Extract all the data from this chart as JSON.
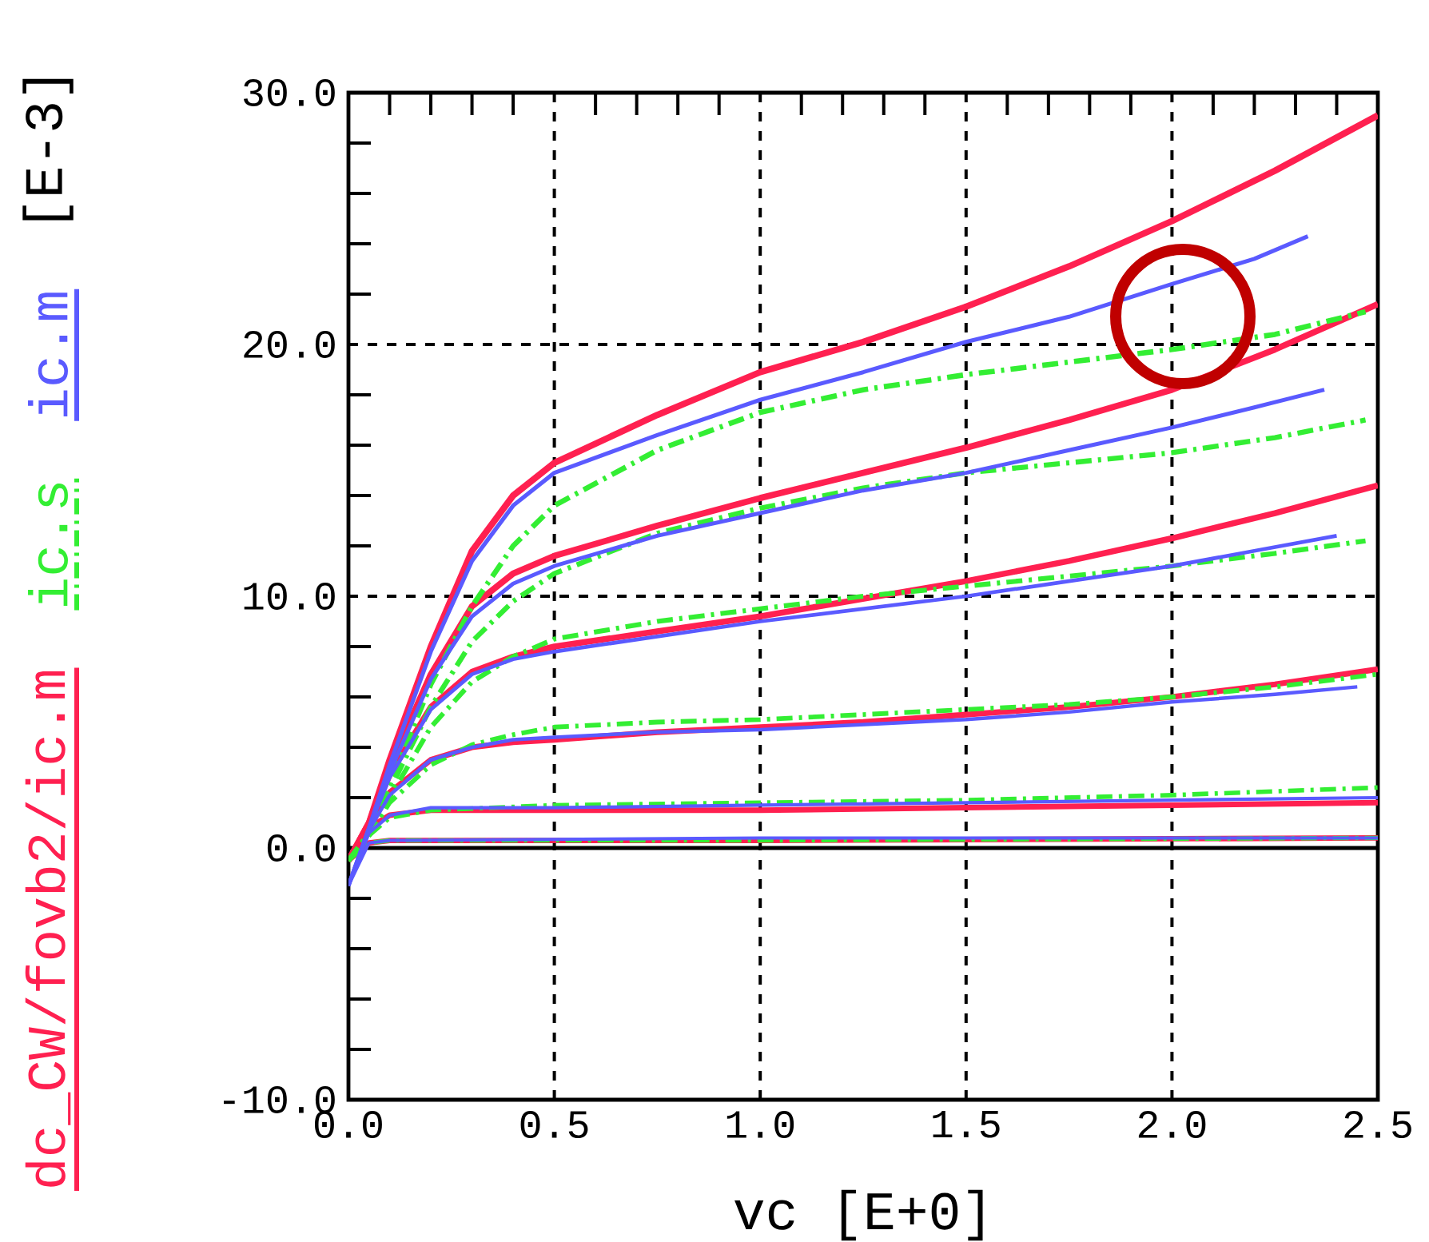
{
  "chart_data": {
    "type": "line",
    "xlabel": "vc [E+0]",
    "ylabel": "[E-3]",
    "xlim": [
      0,
      2.5
    ],
    "ylim": [
      -10,
      30
    ],
    "xticks": [
      {
        "value": 0,
        "label": "0.0"
      },
      {
        "value": 0.5,
        "label": "0.5"
      },
      {
        "value": 1,
        "label": "1.0"
      },
      {
        "value": 1.5,
        "label": "1.5"
      },
      {
        "value": 2,
        "label": "2.0"
      },
      {
        "value": 2.5,
        "label": "2.5"
      }
    ],
    "yticks": [
      {
        "value": -10,
        "label": "-10.0"
      },
      {
        "value": 0,
        "label": "0.0"
      },
      {
        "value": 10,
        "label": "10.0"
      },
      {
        "value": 20,
        "label": "20.0"
      },
      {
        "value": 30,
        "label": "30.0"
      }
    ],
    "grid": true,
    "legend": "left",
    "ref_lines": [
      {
        "axis": "y",
        "value": 0,
        "color": "#000000"
      }
    ],
    "series": [
      {
        "name": "dc_CW/fovb2/ic.m",
        "color": "#ff2050",
        "line_style": "solid",
        "x": [
          0,
          0.05,
          0.1,
          0.2,
          0.3,
          0.4,
          0.5,
          0.75,
          1.0,
          1.25,
          1.5,
          1.75,
          2.0,
          2.25,
          2.5
        ],
        "values": [
          -0.5,
          1.0,
          3.5,
          8.0,
          11.8,
          14.0,
          15.3,
          17.2,
          18.9,
          20.1,
          21.5,
          23.1,
          24.9,
          26.9,
          29.1
        ]
      },
      {
        "color": "#ff2050",
        "line_style": "solid",
        "x": [
          0,
          0.05,
          0.1,
          0.2,
          0.3,
          0.4,
          0.5,
          0.75,
          1.0,
          1.25,
          1.5,
          1.75,
          2.0,
          2.25,
          2.5
        ],
        "values": [
          -0.5,
          1.0,
          3.2,
          6.9,
          9.6,
          10.9,
          11.6,
          12.8,
          13.9,
          14.9,
          15.9,
          17.0,
          18.2,
          19.8,
          21.6
        ]
      },
      {
        "color": "#ff2050",
        "line_style": "solid",
        "x": [
          0,
          0.05,
          0.1,
          0.2,
          0.3,
          0.4,
          0.5,
          0.75,
          1.0,
          1.25,
          1.5,
          1.75,
          2.0,
          2.25,
          2.5
        ],
        "values": [
          -0.5,
          1.0,
          2.9,
          5.6,
          7.0,
          7.6,
          8.0,
          8.6,
          9.2,
          9.9,
          10.6,
          11.4,
          12.3,
          13.3,
          14.4
        ]
      },
      {
        "color": "#ff2050",
        "line_style": "solid",
        "x": [
          0,
          0.05,
          0.1,
          0.2,
          0.3,
          0.4,
          0.5,
          0.75,
          1.0,
          1.25,
          1.5,
          1.75,
          2.0,
          2.25,
          2.5
        ],
        "values": [
          -0.5,
          0.9,
          2.2,
          3.5,
          4.0,
          4.2,
          4.3,
          4.6,
          4.8,
          5.0,
          5.3,
          5.6,
          6.0,
          6.5,
          7.1
        ]
      },
      {
        "color": "#ff2050",
        "line_style": "solid",
        "x": [
          0,
          0.05,
          0.1,
          0.2,
          0.5,
          1.0,
          1.5,
          2.0,
          2.5
        ],
        "values": [
          -0.5,
          0.8,
          1.3,
          1.5,
          1.5,
          1.5,
          1.6,
          1.7,
          1.8
        ]
      },
      {
        "color": "#ff2050",
        "line_style": "solid",
        "x": [
          0,
          0.05,
          0.1,
          1.0,
          2.5
        ],
        "values": [
          -0.5,
          0.2,
          0.3,
          0.3,
          0.4
        ]
      },
      {
        "name": "ic.s",
        "color": "#33ee33",
        "line_style": "dashed",
        "x": [
          0,
          0.05,
          0.1,
          0.2,
          0.3,
          0.4,
          0.5,
          0.75,
          1.0,
          1.25,
          1.5,
          1.75,
          2.0,
          2.25,
          2.47
        ],
        "values": [
          -0.5,
          0.6,
          2.5,
          6.5,
          9.6,
          12.0,
          13.6,
          15.8,
          17.3,
          18.2,
          18.8,
          19.3,
          19.8,
          20.4,
          21.3
        ]
      },
      {
        "color": "#33ee33",
        "line_style": "dashed",
        "x": [
          0,
          0.05,
          0.1,
          0.2,
          0.3,
          0.4,
          0.5,
          0.75,
          1.0,
          1.25,
          1.5,
          1.75,
          2.0,
          2.25,
          2.47
        ],
        "values": [
          -0.5,
          0.5,
          2.3,
          5.6,
          8.2,
          9.8,
          10.9,
          12.5,
          13.5,
          14.3,
          14.9,
          15.3,
          15.7,
          16.3,
          17.0
        ]
      },
      {
        "color": "#33ee33",
        "line_style": "dashed",
        "x": [
          0,
          0.05,
          0.1,
          0.2,
          0.3,
          0.4,
          0.5,
          0.75,
          1.0,
          1.25,
          1.5,
          1.75,
          2.0,
          2.25,
          2.47
        ],
        "values": [
          -0.5,
          0.5,
          2.0,
          4.8,
          6.6,
          7.6,
          8.3,
          9.0,
          9.5,
          10.0,
          10.4,
          10.8,
          11.2,
          11.7,
          12.2
        ]
      },
      {
        "color": "#33ee33",
        "line_style": "dashed",
        "x": [
          0,
          0.05,
          0.1,
          0.2,
          0.3,
          0.4,
          0.5,
          0.75,
          1.0,
          1.25,
          1.5,
          1.75,
          2.0,
          2.25,
          2.5
        ],
        "values": [
          -0.5,
          0.5,
          1.8,
          3.3,
          4.1,
          4.5,
          4.8,
          5.0,
          5.1,
          5.3,
          5.5,
          5.7,
          6.0,
          6.4,
          6.9
        ]
      },
      {
        "color": "#33ee33",
        "line_style": "dashed",
        "x": [
          0,
          0.05,
          0.1,
          0.2,
          0.5,
          1.0,
          1.5,
          2.0,
          2.5
        ],
        "values": [
          -0.5,
          0.5,
          1.2,
          1.5,
          1.7,
          1.8,
          1.9,
          2.1,
          2.4
        ]
      },
      {
        "color": "#33ee33",
        "line_style": "dashed",
        "x": [
          0,
          0.05,
          0.1,
          1.0,
          2.5
        ],
        "values": [
          -0.5,
          0.2,
          0.3,
          0.3,
          0.4
        ]
      },
      {
        "name": "ic.m",
        "color": "#5a5aff",
        "line_style": "solid",
        "x": [
          0,
          0.05,
          0.1,
          0.2,
          0.3,
          0.4,
          0.5,
          0.75,
          1.0,
          1.25,
          1.5,
          1.75,
          2.0,
          2.2,
          2.33
        ],
        "values": [
          -1.5,
          0.8,
          3.3,
          7.8,
          11.4,
          13.6,
          14.9,
          16.4,
          17.8,
          18.9,
          20.1,
          21.1,
          22.4,
          23.4,
          24.3
        ]
      },
      {
        "color": "#5a5aff",
        "line_style": "solid",
        "x": [
          0,
          0.05,
          0.1,
          0.2,
          0.3,
          0.4,
          0.5,
          0.75,
          1.0,
          1.25,
          1.5,
          1.75,
          2.0,
          2.2,
          2.37
        ],
        "values": [
          -1.5,
          0.8,
          3.0,
          6.7,
          9.2,
          10.5,
          11.2,
          12.4,
          13.3,
          14.2,
          14.9,
          15.8,
          16.7,
          17.5,
          18.2
        ]
      },
      {
        "color": "#5a5aff",
        "line_style": "solid",
        "x": [
          0,
          0.05,
          0.1,
          0.2,
          0.3,
          0.4,
          0.5,
          0.75,
          1.0,
          1.25,
          1.5,
          1.75,
          2.0,
          2.2,
          2.4
        ],
        "values": [
          -1.5,
          0.8,
          2.8,
          5.5,
          6.9,
          7.5,
          7.8,
          8.4,
          9.0,
          9.5,
          10.0,
          10.6,
          11.2,
          11.8,
          12.4
        ]
      },
      {
        "color": "#5a5aff",
        "line_style": "solid",
        "x": [
          0,
          0.05,
          0.1,
          0.2,
          0.3,
          0.4,
          0.5,
          0.75,
          1.0,
          1.25,
          1.5,
          1.75,
          2.0,
          2.25,
          2.45
        ],
        "values": [
          -1.5,
          0.7,
          2.1,
          3.5,
          4.0,
          4.3,
          4.4,
          4.6,
          4.7,
          4.9,
          5.1,
          5.4,
          5.8,
          6.1,
          6.4
        ]
      },
      {
        "color": "#5a5aff",
        "line_style": "solid",
        "x": [
          0,
          0.05,
          0.1,
          0.2,
          0.5,
          1.0,
          1.5,
          2.0,
          2.5
        ],
        "values": [
          -1.5,
          0.6,
          1.3,
          1.6,
          1.6,
          1.7,
          1.8,
          1.9,
          2.0
        ]
      },
      {
        "color": "#5a5aff",
        "line_style": "solid",
        "x": [
          0,
          0.05,
          0.1,
          1.0,
          2.5
        ],
        "values": [
          -1.5,
          0.2,
          0.3,
          0.4,
          0.4
        ]
      }
    ]
  }
}
